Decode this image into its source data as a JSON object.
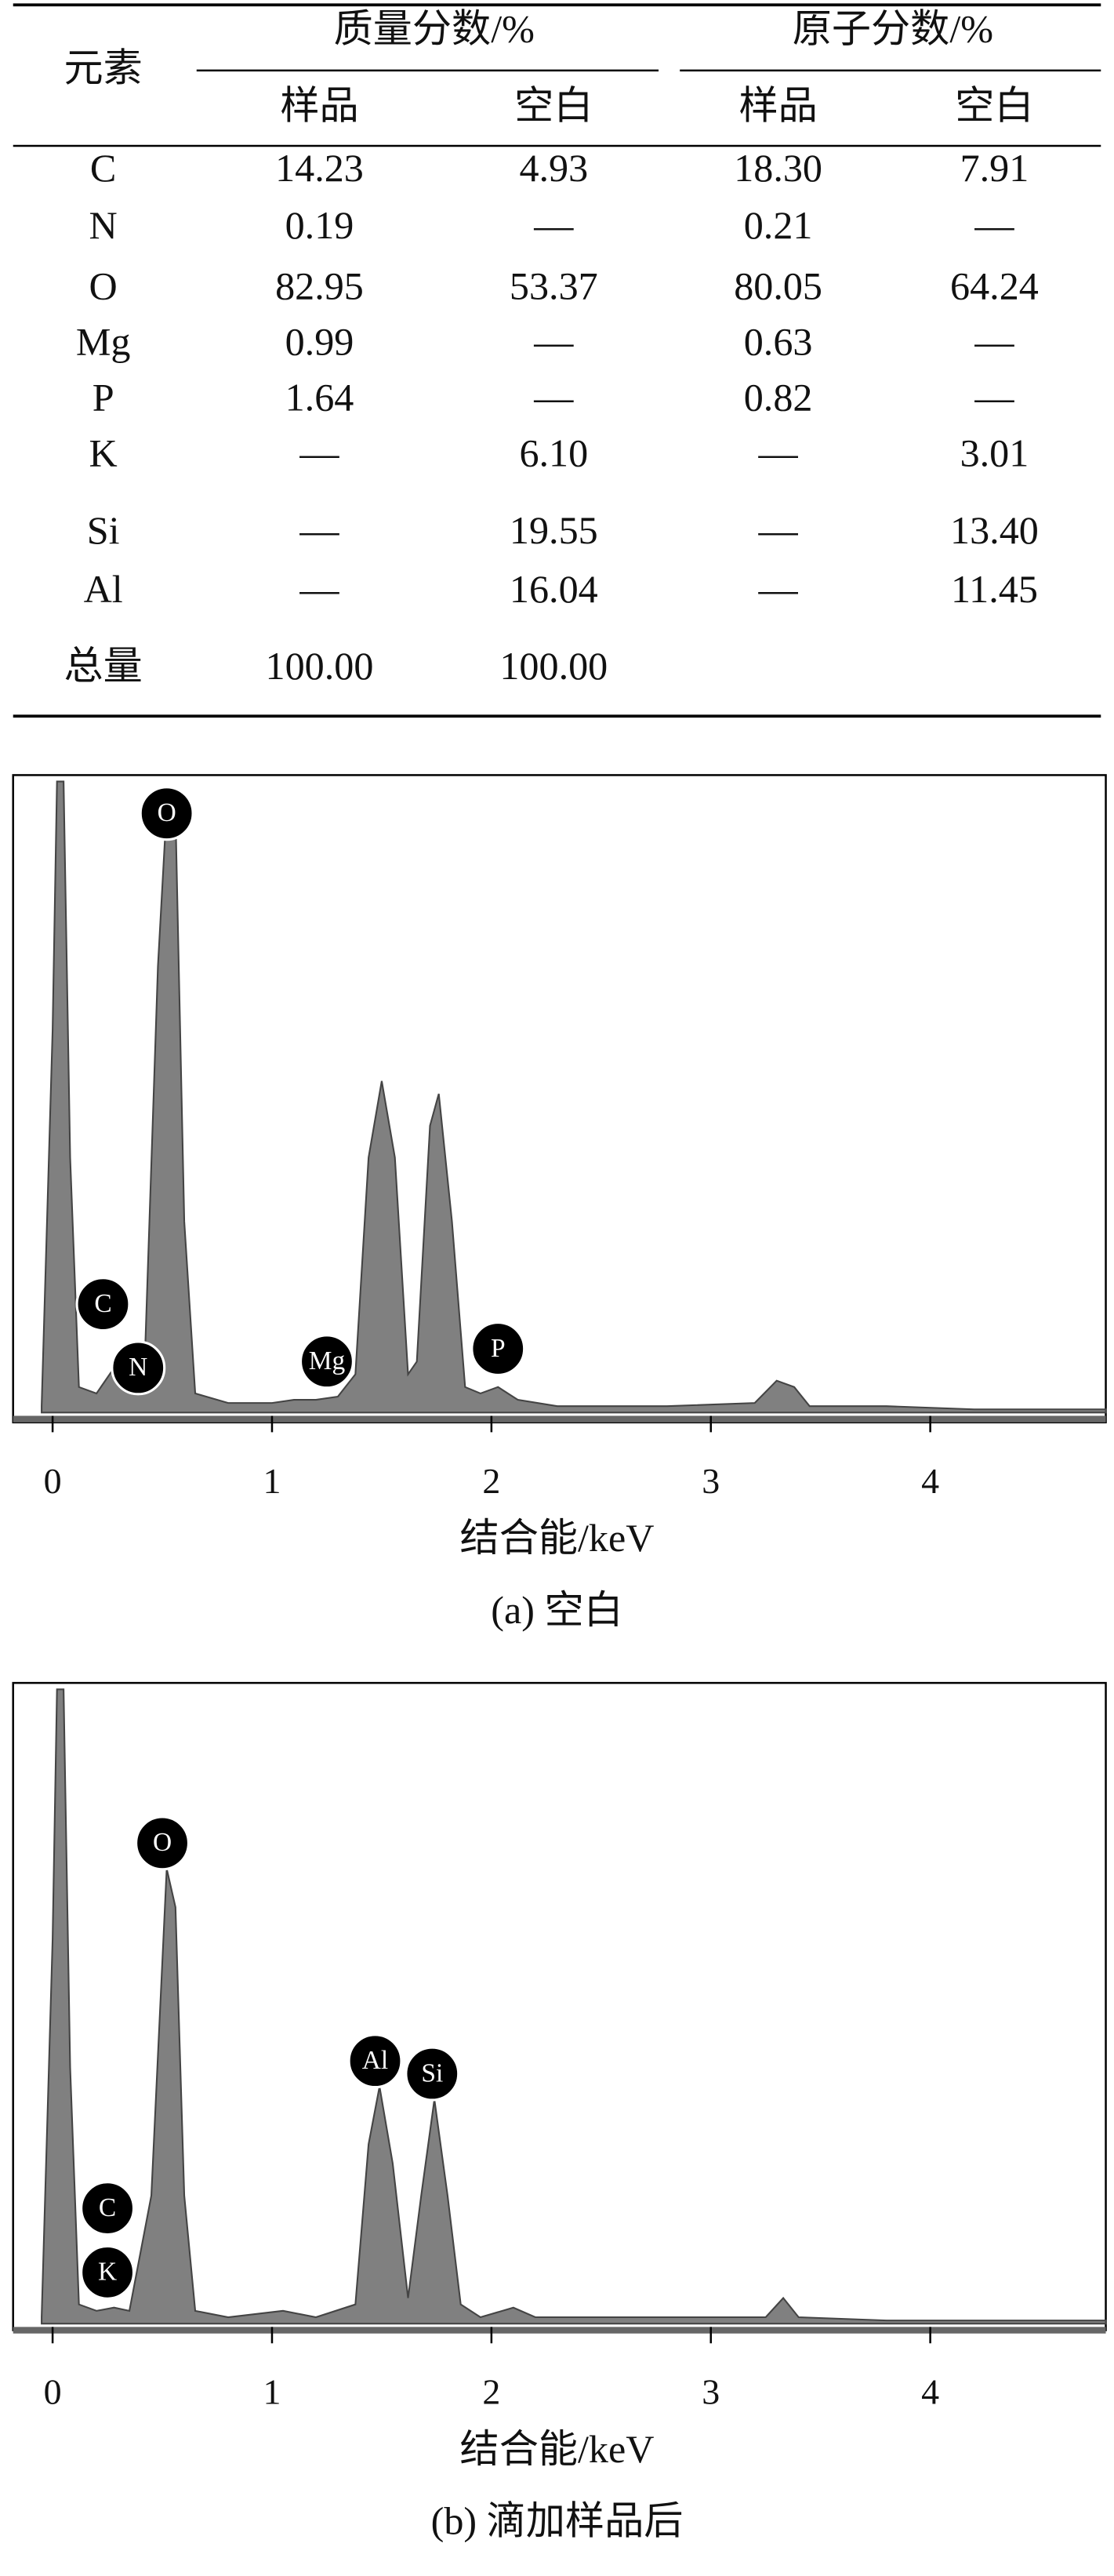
{
  "table": {
    "element_header": "元素",
    "groups": [
      "质量分数/%",
      "原子分数/%"
    ],
    "subheaders": [
      "样品",
      "空白",
      "样品",
      "空白"
    ],
    "rows": [
      [
        "C",
        "14.23",
        "4.93",
        "18.30",
        "7.91"
      ],
      [
        "N",
        "0.19",
        "—",
        "0.21",
        "—"
      ],
      [
        "O",
        "82.95",
        "53.37",
        "80.05",
        "64.24"
      ],
      [
        "Mg",
        "0.99",
        "—",
        "0.63",
        "—"
      ],
      [
        "P",
        "1.64",
        "—",
        "0.82",
        "—"
      ],
      [
        "K",
        "—",
        "6.10",
        "—",
        "3.01"
      ],
      [
        "Si",
        "—",
        "19.55",
        "—",
        "13.40"
      ],
      [
        "Al",
        "—",
        "16.04",
        "—",
        "11.45"
      ],
      [
        "总量",
        "100.00",
        "100.00"
      ]
    ]
  },
  "chart_data": [
    {
      "type": "area",
      "xlabel": "结合能/keV",
      "caption": "(a) 空白",
      "color": "#808080",
      "x": [
        -0.05,
        0.0,
        0.02,
        0.05,
        0.08,
        0.12,
        0.2,
        0.28,
        0.35,
        0.42,
        0.48,
        0.52,
        0.56,
        0.6,
        0.65,
        0.8,
        1.0,
        1.1,
        1.2,
        1.3,
        1.38,
        1.44,
        1.5,
        1.56,
        1.62,
        1.66,
        1.72,
        1.76,
        1.82,
        1.88,
        1.95,
        2.03,
        2.12,
        2.3,
        2.8,
        3.2,
        3.3,
        3.38,
        3.45,
        3.8,
        4.2,
        4.8
      ],
      "values": [
        1,
        60,
        99,
        99,
        40,
        4,
        3,
        7,
        6,
        8,
        70,
        95,
        94,
        30,
        3,
        1.5,
        1.5,
        2,
        2,
        2.5,
        6,
        40,
        52,
        40,
        6,
        8,
        45,
        50,
        30,
        4,
        3,
        4,
        2,
        1,
        1,
        1.5,
        5,
        4,
        1,
        1,
        0.5,
        0.5
      ],
      "xlim": [
        -0.18,
        4.8
      ],
      "ylim": [
        0,
        100
      ],
      "xticks": [
        0,
        1,
        2,
        3,
        4
      ],
      "annotations": [
        {
          "label": "O",
          "x": 0.52,
          "y": 94
        },
        {
          "label": "C",
          "x": 0.23,
          "y": 17
        },
        {
          "label": "N",
          "x": 0.39,
          "y": 7
        },
        {
          "label": "Mg",
          "x": 1.25,
          "y": 8
        },
        {
          "label": "P",
          "x": 2.03,
          "y": 10
        }
      ]
    },
    {
      "type": "area",
      "xlabel": "结合能/keV",
      "caption": "(b) 滴加样品后",
      "color": "#808080",
      "x": [
        -0.05,
        0.0,
        0.02,
        0.05,
        0.08,
        0.12,
        0.2,
        0.28,
        0.35,
        0.45,
        0.52,
        0.56,
        0.6,
        0.65,
        0.8,
        1.05,
        1.2,
        1.38,
        1.44,
        1.49,
        1.55,
        1.62,
        1.68,
        1.74,
        1.8,
        1.86,
        1.95,
        2.1,
        2.2,
        2.8,
        3.25,
        3.33,
        3.4,
        3.8,
        4.8
      ],
      "values": [
        1,
        60,
        99,
        99,
        40,
        3,
        2,
        2.5,
        2,
        20,
        71,
        65,
        20,
        2,
        1,
        2,
        1,
        3,
        28,
        37,
        25,
        4,
        20,
        35,
        20,
        3,
        1,
        2.5,
        1,
        1,
        1,
        4,
        1,
        0.5,
        0.5
      ],
      "xlim": [
        -0.18,
        4.8
      ],
      "ylim": [
        0,
        100
      ],
      "xticks": [
        0,
        1,
        2,
        3,
        4
      ],
      "annotations": [
        {
          "label": "O",
          "x": 0.5,
          "y": 75
        },
        {
          "label": "Al",
          "x": 1.47,
          "y": 41
        },
        {
          "label": "Si",
          "x": 1.73,
          "y": 39
        },
        {
          "label": "C",
          "x": 0.25,
          "y": 18
        },
        {
          "label": "K",
          "x": 0.25,
          "y": 8
        }
      ]
    }
  ]
}
